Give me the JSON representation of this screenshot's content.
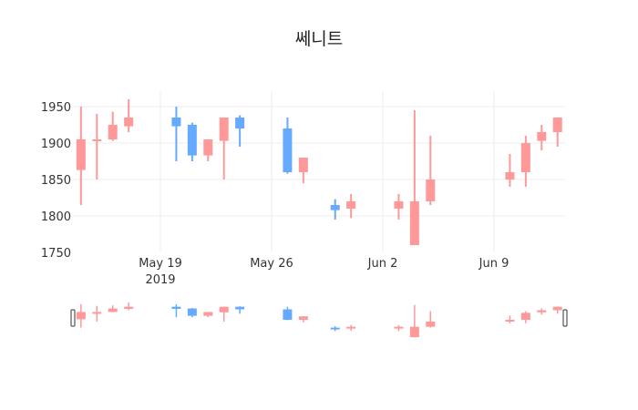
{
  "chart_data": {
    "type": "candlestick",
    "title": "쎄니트",
    "xlabel": "",
    "ylabel": "",
    "ylim": [
      1750,
      1970
    ],
    "y_ticks": [
      1750,
      1800,
      1850,
      1900,
      1950
    ],
    "x_ticks": [
      {
        "label": "May 19",
        "sublabel": "2019",
        "date": "2019-05-19"
      },
      {
        "label": "May 26",
        "sublabel": "",
        "date": "2019-05-26"
      },
      {
        "label": "Jun 2",
        "sublabel": "",
        "date": "2019-06-02"
      },
      {
        "label": "Jun 9",
        "sublabel": "",
        "date": "2019-06-09"
      }
    ],
    "grid": true,
    "legend": false,
    "rangeslider": true,
    "colors": {
      "increasing": "#FF9999",
      "decreasing": "#66AAFF"
    },
    "series": [
      {
        "date": "2019-05-14",
        "open": 1863,
        "high": 1950,
        "low": 1815,
        "close": 1905
      },
      {
        "date": "2019-05-15",
        "open": 1904,
        "high": 1940,
        "low": 1850,
        "close": 1905
      },
      {
        "date": "2019-05-16",
        "open": 1905,
        "high": 1943,
        "low": 1903,
        "close": 1925
      },
      {
        "date": "2019-05-17",
        "open": 1923,
        "high": 1960,
        "low": 1915,
        "close": 1935
      },
      {
        "date": "2019-05-20",
        "open": 1935,
        "high": 1950,
        "low": 1875,
        "close": 1923
      },
      {
        "date": "2019-05-21",
        "open": 1925,
        "high": 1928,
        "low": 1875,
        "close": 1883
      },
      {
        "date": "2019-05-22",
        "open": 1883,
        "high": 1905,
        "low": 1875,
        "close": 1905
      },
      {
        "date": "2019-05-23",
        "open": 1903,
        "high": 1935,
        "low": 1850,
        "close": 1935
      },
      {
        "date": "2019-05-24",
        "open": 1935,
        "high": 1938,
        "low": 1895,
        "close": 1920
      },
      {
        "date": "2019-05-27",
        "open": 1920,
        "high": 1935,
        "low": 1858,
        "close": 1860
      },
      {
        "date": "2019-05-28",
        "open": 1860,
        "high": 1880,
        "low": 1845,
        "close": 1880
      },
      {
        "date": "2019-05-30",
        "open": 1815,
        "high": 1823,
        "low": 1795,
        "close": 1808
      },
      {
        "date": "2019-05-31",
        "open": 1810,
        "high": 1830,
        "low": 1797,
        "close": 1820
      },
      {
        "date": "2019-06-03",
        "open": 1810,
        "high": 1830,
        "low": 1795,
        "close": 1820
      },
      {
        "date": "2019-06-04",
        "open": 1760,
        "high": 1945,
        "low": 1760,
        "close": 1820
      },
      {
        "date": "2019-06-05",
        "open": 1820,
        "high": 1910,
        "low": 1815,
        "close": 1850
      },
      {
        "date": "2019-06-10",
        "open": 1850,
        "high": 1885,
        "low": 1840,
        "close": 1860
      },
      {
        "date": "2019-06-11",
        "open": 1860,
        "high": 1910,
        "low": 1840,
        "close": 1900
      },
      {
        "date": "2019-06-12",
        "open": 1903,
        "high": 1925,
        "low": 1890,
        "close": 1915
      },
      {
        "date": "2019-06-13",
        "open": 1915,
        "high": 1935,
        "low": 1895,
        "close": 1935
      }
    ]
  }
}
